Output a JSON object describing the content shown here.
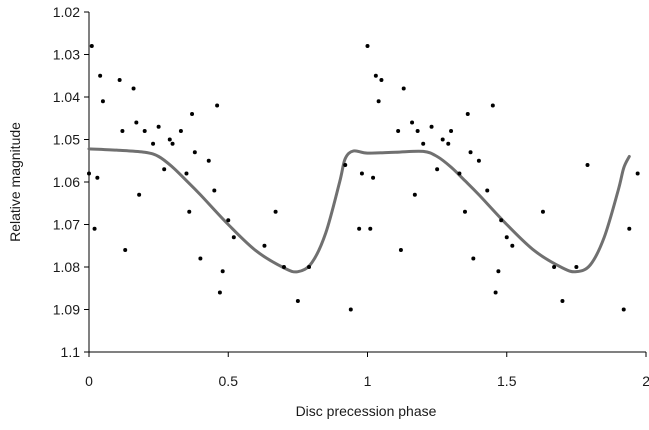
{
  "chart_data": {
    "type": "scatter",
    "title": "",
    "xlabel": "Disc precession phase",
    "ylabel": "Relative magnitude",
    "xlim": [
      0,
      2
    ],
    "ylim": [
      1.02,
      1.1
    ],
    "y_inverted": true,
    "x_ticks": [
      "0",
      "0.5",
      "1",
      "1.5",
      "2"
    ],
    "y_ticks": [
      "1.02",
      "1.03",
      "1.04",
      "1.05",
      "1.06",
      "1.07",
      "1.08",
      "1.09",
      "1.1"
    ],
    "grid": false,
    "legend": "none",
    "colors": {
      "points": "#000000",
      "curve": "#707070",
      "axes": "#000000"
    },
    "series": [
      {
        "kind": "points",
        "x": [
          0.0,
          0.01,
          0.02,
          0.03,
          0.04,
          0.05,
          0.11,
          0.12,
          0.13,
          0.16,
          0.17,
          0.18,
          0.2,
          0.23,
          0.25,
          0.27,
          0.29,
          0.3,
          0.33,
          0.35,
          0.36,
          0.37,
          0.38,
          0.4,
          0.43,
          0.45,
          0.46,
          0.47,
          0.48,
          0.5,
          0.52,
          0.63,
          0.67,
          0.7,
          0.75,
          0.79,
          0.92,
          0.94,
          0.97,
          0.98,
          1.0,
          1.01,
          1.02,
          1.03,
          1.04,
          1.05,
          1.11,
          1.12,
          1.13,
          1.16,
          1.17,
          1.18,
          1.2,
          1.23,
          1.25,
          1.27,
          1.29,
          1.3,
          1.33,
          1.35,
          1.36,
          1.37,
          1.38,
          1.4,
          1.43,
          1.45,
          1.46,
          1.47,
          1.48,
          1.5,
          1.52,
          1.63,
          1.67,
          1.7,
          1.75,
          1.79,
          1.92,
          1.94,
          1.97
        ],
        "y": [
          1.058,
          1.028,
          1.071,
          1.059,
          1.035,
          1.041,
          1.036,
          1.048,
          1.076,
          1.038,
          1.046,
          1.063,
          1.048,
          1.051,
          1.047,
          1.057,
          1.05,
          1.051,
          1.048,
          1.058,
          1.067,
          1.044,
          1.053,
          1.078,
          1.055,
          1.062,
          1.042,
          1.086,
          1.081,
          1.069,
          1.073,
          1.075,
          1.067,
          1.08,
          1.088,
          1.08,
          1.056,
          1.09,
          1.071,
          1.058,
          1.028,
          1.071,
          1.059,
          1.035,
          1.041,
          1.036,
          1.048,
          1.076,
          1.038,
          1.046,
          1.063,
          1.048,
          1.051,
          1.047,
          1.057,
          1.05,
          1.051,
          1.048,
          1.058,
          1.067,
          1.044,
          1.053,
          1.078,
          1.055,
          1.062,
          1.042,
          1.086,
          1.081,
          1.069,
          1.073,
          1.075,
          1.067,
          1.08,
          1.088,
          1.08,
          1.056,
          1.09,
          1.071,
          1.058
        ]
      },
      {
        "kind": "curve",
        "x": [
          0.0,
          0.1,
          0.2,
          0.25,
          0.3,
          0.35,
          0.4,
          0.5,
          0.6,
          0.7,
          0.75,
          0.8,
          0.85,
          0.9,
          0.92,
          0.95,
          1.0,
          1.1,
          1.2,
          1.25,
          1.3,
          1.35,
          1.4,
          1.5,
          1.6,
          1.7,
          1.75,
          1.8,
          1.85,
          1.9,
          1.92,
          1.94
        ],
        "y": [
          1.0522,
          1.0525,
          1.053,
          1.054,
          1.0565,
          1.0597,
          1.063,
          1.07,
          1.0762,
          1.0802,
          1.0811,
          1.079,
          1.072,
          1.06,
          1.0545,
          1.0527,
          1.0532,
          1.053,
          1.0528,
          1.054,
          1.0565,
          1.0597,
          1.063,
          1.07,
          1.0762,
          1.0802,
          1.0811,
          1.0795,
          1.073,
          1.062,
          1.0567,
          1.054
        ]
      }
    ]
  }
}
